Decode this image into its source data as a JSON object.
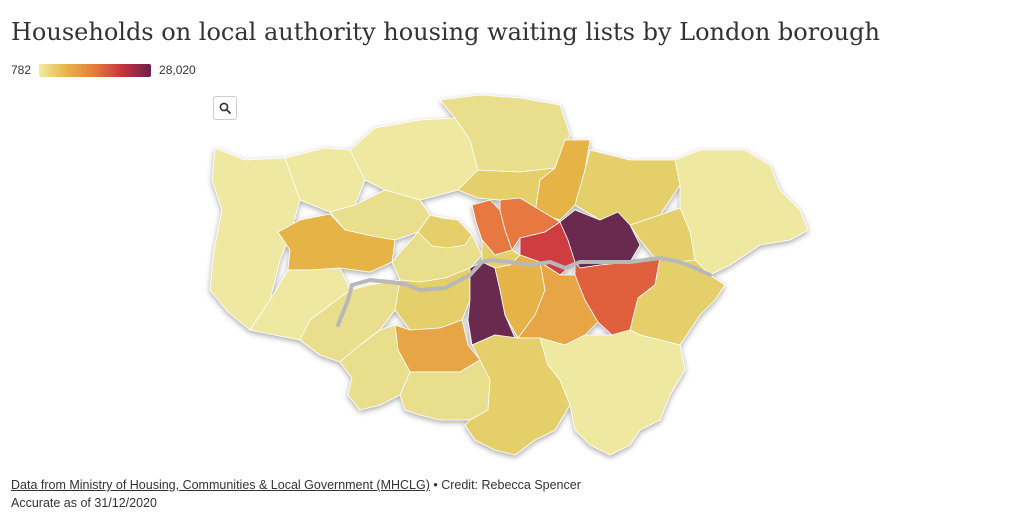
{
  "title": "Households on local authority housing waiting lists by London borough",
  "legend": {
    "min_label": "782",
    "max_label": "28,020",
    "colors": [
      "#f1ec9c",
      "#e6b347",
      "#e67a3c",
      "#c4323d",
      "#6b1f4f"
    ]
  },
  "zoom_icon": "search-icon",
  "footer": {
    "source_link": "Data from Ministry of Housing, Communities & Local Government (MHCLG)",
    "separator": " • ",
    "credit": "Credit: Rebecca Spencer",
    "accurate": "Accurate as of 31/12/2020"
  },
  "map_colors": {
    "palest": "#efe8a0",
    "pale": "#e9de8c",
    "light": "#e4cf6a",
    "amber": "#e6b347",
    "orange_mid": "#e8a545",
    "orange": "#e6783f",
    "orange_red": "#e0603e",
    "red": "#cf3d43",
    "plum": "#6b2a4f",
    "river": "#b8b8b8"
  }
}
